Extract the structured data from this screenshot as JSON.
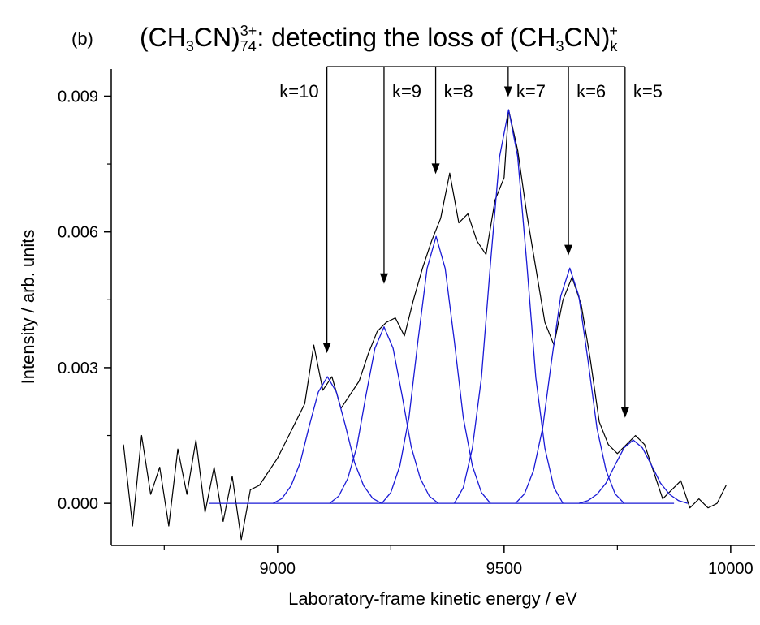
{
  "chart_data": {
    "type": "line",
    "panel_label": "(b)",
    "title_parts": [
      {
        "text": "(CH",
        "style": "normal"
      },
      {
        "text": "3",
        "style": "sub"
      },
      {
        "text": "CN)",
        "style": "normal"
      },
      {
        "text": "74",
        "style": "sub"
      },
      {
        "text": "3+",
        "style": "sup"
      },
      {
        "text": ": detecting the loss of (CH",
        "style": "normal"
      },
      {
        "text": "3",
        "style": "sub"
      },
      {
        "text": "CN)",
        "style": "normal"
      },
      {
        "text": "k",
        "style": "sub"
      },
      {
        "text": "+",
        "style": "sup"
      }
    ],
    "x_label": "Laboratory-frame kinetic energy / eV",
    "y_label": "Intensity / arb. units",
    "xlim": [
      8633,
      10054
    ],
    "ylim": [
      -0.00093,
      0.0096
    ],
    "xticks": [
      9000,
      9500,
      10000
    ],
    "xminor_ticks": [
      8750,
      9250,
      9750
    ],
    "yticks": [
      {
        "value": 0,
        "label": "0.000"
      },
      0.003,
      0.006,
      0.009
    ],
    "yminor_ticks": [
      0.0015,
      0.0045,
      0.0075
    ],
    "series": [
      {
        "color": "#000000",
        "x": [
          8660,
          8680,
          8700,
          8720,
          8740,
          8760,
          8780,
          8800,
          8820,
          8840,
          8860,
          8880,
          8900,
          8920,
          8940,
          8960,
          8980,
          9000,
          9020,
          9040,
          9060,
          9080,
          9100,
          9120,
          9140,
          9160,
          9180,
          9200,
          9220,
          9240,
          9260,
          9280,
          9300,
          9320,
          9340,
          9360,
          9380,
          9400,
          9420,
          9440,
          9460,
          9480,
          9500,
          9510,
          9530,
          9550,
          9570,
          9590,
          9610,
          9630,
          9650,
          9670,
          9690,
          9710,
          9730,
          9750,
          9770,
          9790,
          9810,
          9830,
          9850,
          9870,
          9890,
          9910,
          9930,
          9950,
          9970,
          9990
        ],
        "values": [
          0.0013,
          -0.0005,
          0.0015,
          0.0002,
          0.0008,
          -0.0005,
          0.0012,
          0.0002,
          0.0014,
          -0.0002,
          0.0008,
          -0.0004,
          0.0006,
          -0.0008,
          0.0003,
          0.0004,
          0.0007,
          0.001,
          0.0014,
          0.0018,
          0.0022,
          0.0035,
          0.0025,
          0.0028,
          0.0021,
          0.0024,
          0.0027,
          0.0033,
          0.0038,
          0.004,
          0.0041,
          0.0037,
          0.0045,
          0.0052,
          0.0058,
          0.0063,
          0.0073,
          0.0062,
          0.0064,
          0.0058,
          0.0055,
          0.0067,
          0.0072,
          0.0087,
          0.0078,
          0.0064,
          0.0052,
          0.004,
          0.0035,
          0.0045,
          0.005,
          0.0044,
          0.0032,
          0.0018,
          0.0013,
          0.0011,
          0.0013,
          0.0015,
          0.0013,
          0.0007,
          0.0001,
          0.0003,
          0.0005,
          -0.0001,
          0.0001,
          -0.0001,
          0,
          0.0004
        ]
      },
      {
        "color": "#1a1ad6",
        "x": [
          8848,
          9875
        ],
        "values": [
          0,
          0
        ]
      },
      {
        "color": "#1a1ad6",
        "x": [
          8990,
          9010,
          9030,
          9050,
          9070,
          9090,
          9110,
          9130,
          9150,
          9170,
          9190,
          9210,
          9230
        ],
        "values": [
          0,
          0.00011,
          0.00039,
          0.0009,
          0.00171,
          0.00246,
          0.0028,
          0.00246,
          0.00171,
          0.0009,
          0.00039,
          0.00011,
          0
        ]
      },
      {
        "color": "#1a1ad6",
        "x": [
          9115,
          9135,
          9155,
          9175,
          9195,
          9215,
          9235,
          9255,
          9275,
          9295,
          9315,
          9335,
          9355
        ],
        "values": [
          0,
          0.00016,
          0.00055,
          0.00125,
          0.00238,
          0.00343,
          0.0039,
          0.00343,
          0.00238,
          0.00125,
          0.00055,
          0.00016,
          0
        ]
      },
      {
        "color": "#1a1ad6",
        "x": [
          9230,
          9250,
          9270,
          9290,
          9310,
          9330,
          9350,
          9370,
          9390,
          9410,
          9430,
          9450,
          9470
        ],
        "values": [
          0,
          0.00024,
          0.00083,
          0.00189,
          0.0036,
          0.00519,
          0.0059,
          0.00519,
          0.0036,
          0.00189,
          0.00083,
          0.00024,
          0
        ]
      },
      {
        "color": "#1a1ad6",
        "x": [
          9390,
          9410,
          9430,
          9450,
          9470,
          9490,
          9510,
          9530,
          9550,
          9570,
          9590,
          9610,
          9630
        ],
        "values": [
          0,
          0.00035,
          0.00122,
          0.00278,
          0.00531,
          0.00766,
          0.0087,
          0.00766,
          0.00531,
          0.00278,
          0.00122,
          0.00035,
          0
        ]
      },
      {
        "color": "#1a1ad6",
        "x": [
          9525,
          9545,
          9565,
          9585,
          9605,
          9625,
          9645,
          9665,
          9685,
          9705,
          9725,
          9745,
          9765
        ],
        "values": [
          0,
          0.00021,
          0.00073,
          0.00166,
          0.00317,
          0.00458,
          0.0052,
          0.00458,
          0.00317,
          0.00166,
          0.00073,
          0.00021,
          0
        ]
      },
      {
        "color": "#1a1ad6",
        "x": [
          9665,
          9685,
          9705,
          9725,
          9745,
          9765,
          9785,
          9805,
          9825,
          9845,
          9865,
          9885,
          9905
        ],
        "values": [
          0,
          6e-05,
          0.0002,
          0.00045,
          0.00085,
          0.00123,
          0.0014,
          0.00123,
          0.00085,
          0.00045,
          0.0002,
          6e-05,
          0
        ]
      }
    ],
    "annotations": [
      {
        "text": "k=10",
        "x": 9109,
        "y": 0.00332
      },
      {
        "text": "k=9",
        "x": 9235,
        "y": 0.00485
      },
      {
        "text": "k=8",
        "x": 9349,
        "y": 0.00728
      },
      {
        "text": "k=7",
        "x": 9509,
        "y": 0.00898
      },
      {
        "text": "k=6",
        "x": 9642,
        "y": 0.00548
      },
      {
        "text": "k=5",
        "x": 9767,
        "y": 0.00189
      }
    ]
  }
}
